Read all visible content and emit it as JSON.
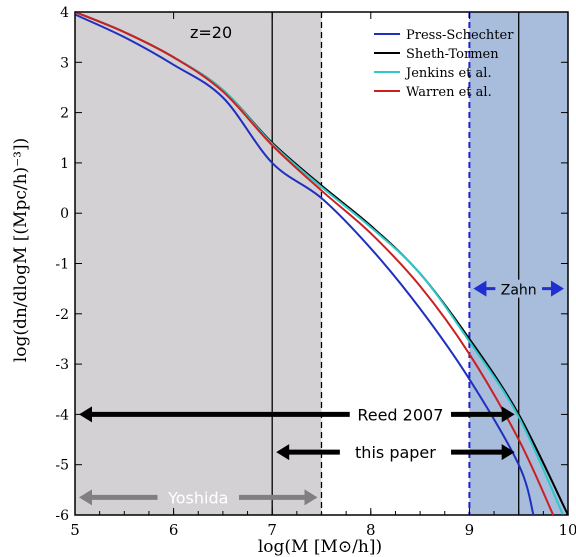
{
  "chart_data": {
    "type": "line",
    "title": "",
    "xlabel": "log(M [M⊙/h])",
    "ylabel": "log(dn/dlogM [(Mpc/h)⁻³])",
    "xlim": [
      5,
      10
    ],
    "ylim": [
      -6,
      4
    ],
    "xticks": [
      "5",
      "6",
      "7",
      "8",
      "9",
      "10"
    ],
    "yticks": [
      "-6",
      "-5",
      "-4",
      "-3",
      "-2",
      "-1",
      "0",
      "1",
      "2",
      "3",
      "4"
    ],
    "redshift_label": "z=20",
    "legend_position": "top-right",
    "series": [
      {
        "name": "Press-Schechter",
        "color": "#1f2fbf",
        "points": [
          [
            5,
            3.95
          ],
          [
            5.5,
            3.5
          ],
          [
            6,
            2.95
          ],
          [
            6.5,
            2.3
          ],
          [
            7,
            1.0
          ],
          [
            7.5,
            0.3
          ],
          [
            8,
            -0.7
          ],
          [
            8.5,
            -1.9
          ],
          [
            9,
            -3.3
          ],
          [
            9.5,
            -5.0
          ],
          [
            9.65,
            -6.0
          ]
        ]
      },
      {
        "name": "Sheth-Tormen",
        "color": "#000000",
        "points": [
          [
            5,
            4.0
          ],
          [
            5.5,
            3.6
          ],
          [
            6,
            3.1
          ],
          [
            6.5,
            2.45
          ],
          [
            7,
            1.4
          ],
          [
            7.5,
            0.55
          ],
          [
            8,
            -0.25
          ],
          [
            8.5,
            -1.2
          ],
          [
            9,
            -2.5
          ],
          [
            9.5,
            -4.0
          ],
          [
            10,
            -6.0
          ]
        ]
      },
      {
        "name": "Jenkins et al.",
        "color": "#2ec8c8",
        "points": [
          [
            5,
            4.0
          ],
          [
            5.5,
            3.6
          ],
          [
            6,
            3.1
          ],
          [
            6.5,
            2.45
          ],
          [
            7,
            1.38
          ],
          [
            7.5,
            0.52
          ],
          [
            8,
            -0.28
          ],
          [
            8.5,
            -1.2
          ],
          [
            9,
            -2.55
          ],
          [
            9.5,
            -4.05
          ],
          [
            9.95,
            -6.0
          ]
        ]
      },
      {
        "name": "Warren et al.",
        "color": "#cc2020",
        "points": [
          [
            5,
            4.0
          ],
          [
            5.5,
            3.6
          ],
          [
            6,
            3.1
          ],
          [
            6.5,
            2.42
          ],
          [
            7,
            1.35
          ],
          [
            7.5,
            0.45
          ],
          [
            8,
            -0.4
          ],
          [
            8.5,
            -1.45
          ],
          [
            9,
            -2.8
          ],
          [
            9.5,
            -4.5
          ],
          [
            9.85,
            -6.0
          ]
        ]
      }
    ],
    "regions": [
      {
        "name": "yoshida-region",
        "x": [
          5,
          7.5
        ],
        "color": "#d4d1d4"
      },
      {
        "name": "zahn-region",
        "x": [
          9,
          10
        ],
        "color": "#a8bcdc"
      }
    ],
    "vlines": [
      {
        "x": 7,
        "style": "solid",
        "color": "#000000"
      },
      {
        "x": 7.5,
        "style": "dashed",
        "color": "#000000"
      },
      {
        "x": 9,
        "style": "dashed",
        "color": "#2020cc"
      },
      {
        "x": 9.5,
        "style": "solid",
        "color": "#000000"
      }
    ],
    "ranges": [
      {
        "name": "Reed 2007",
        "x": [
          5,
          9.5
        ],
        "y": -4,
        "color": "#000000"
      },
      {
        "name": "this paper",
        "x": [
          7,
          9.5
        ],
        "y": -4.75,
        "color": "#000000"
      },
      {
        "name": "Yoshida",
        "x": [
          5,
          7.5
        ],
        "y": -5.65,
        "color": "#808080"
      },
      {
        "name": "Zahn",
        "x": [
          9,
          10
        ],
        "y": -1.5,
        "color": "#2030d0"
      }
    ]
  }
}
